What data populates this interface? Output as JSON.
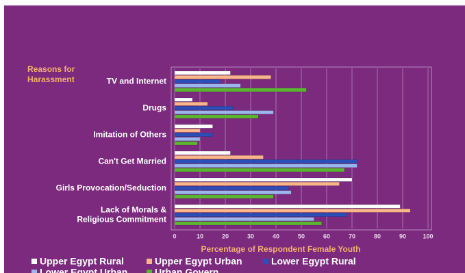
{
  "chart_data": {
    "type": "bar",
    "orientation": "horizontal",
    "title": "Reasons for Harassment",
    "x_label": "Percentage of Respondent Female Youth",
    "categories": [
      "TV and Internet",
      "Drugs",
      "Imitation of Others",
      "Can't Get Married",
      "Girls Provocation/Seduction",
      "Lack of Morals & Religious Commitment"
    ],
    "series": [
      {
        "name": "Upper Egypt Rural",
        "color": "#ffffff",
        "values": [
          22,
          7,
          15,
          22,
          70,
          89
        ]
      },
      {
        "name": "Upper Egypt Urban",
        "color": "#f9b68a",
        "values": [
          38,
          13,
          10,
          35,
          65,
          93
        ]
      },
      {
        "name": "Lower Egypt Rural",
        "color": "#2a4fb8",
        "values": [
          18,
          23,
          15,
          72,
          45,
          68
        ]
      },
      {
        "name": "Lower Egypt Urban",
        "color": "#9ab6ec",
        "values": [
          26,
          39,
          10,
          72,
          46,
          55
        ]
      },
      {
        "name": "Urban Govern",
        "color": "#5cb531",
        "values": [
          52,
          33,
          9,
          67,
          39,
          58
        ]
      }
    ],
    "xlim": [
      0,
      100
    ],
    "xticks": [
      0,
      10,
      20,
      30,
      40,
      50,
      60,
      70,
      80,
      90,
      100
    ],
    "grid": true
  }
}
